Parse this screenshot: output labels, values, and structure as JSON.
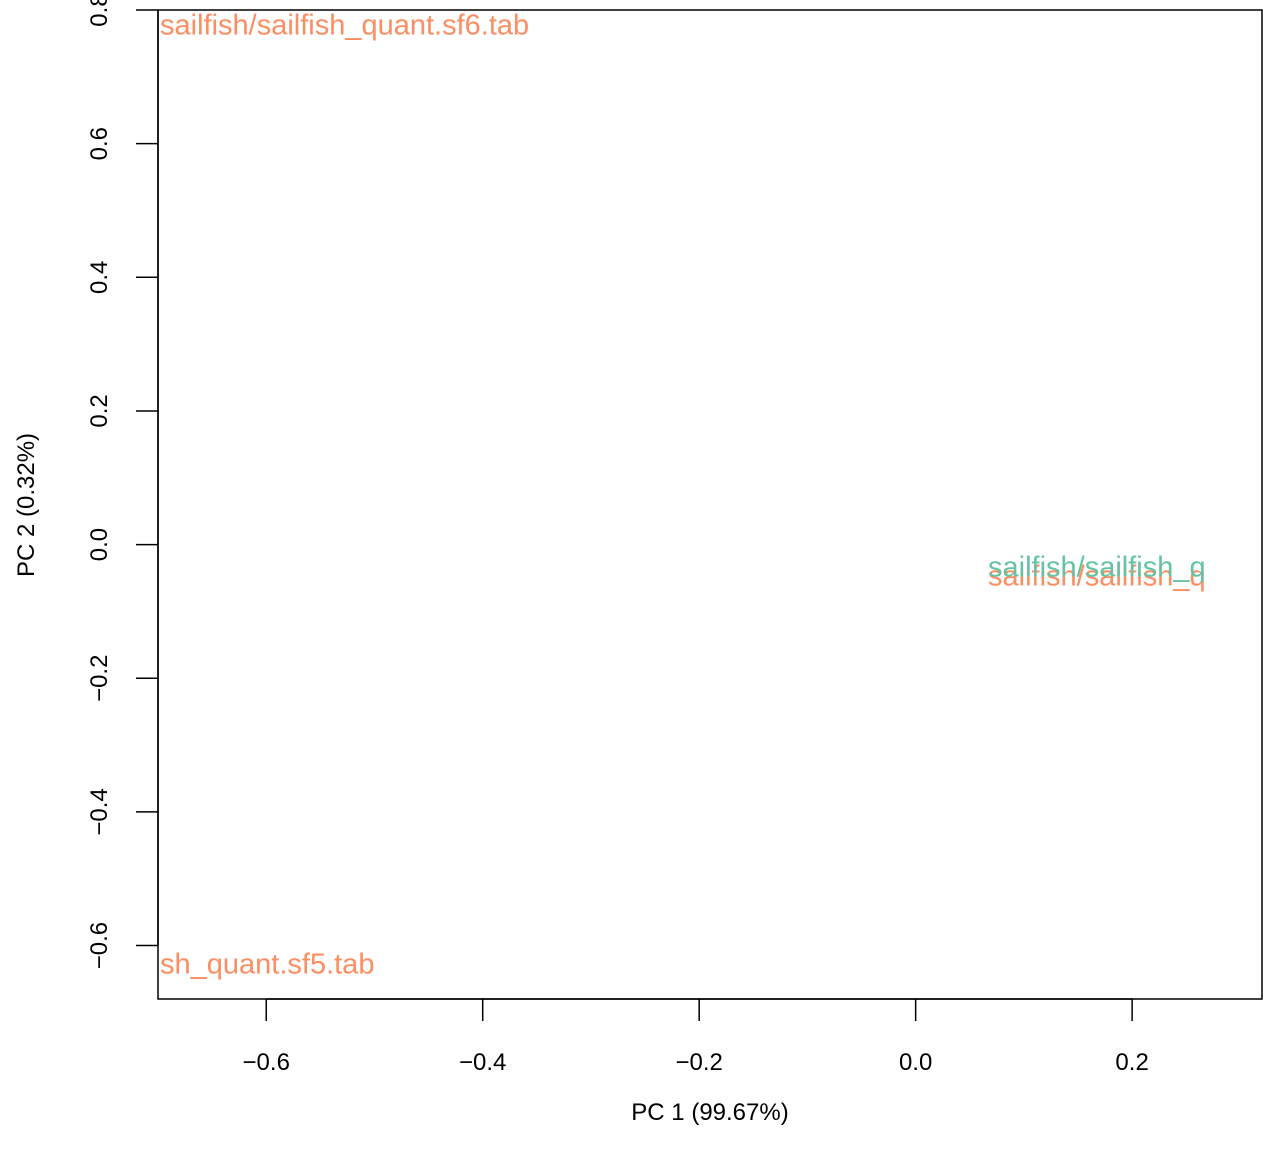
{
  "chart_data": {
    "type": "scatter",
    "title": "",
    "xlabel": "PC 1 (99.67%)",
    "ylabel": "PC 2 (0.32%)",
    "xlim": [
      -0.7,
      0.32
    ],
    "ylim": [
      -0.68,
      0.8
    ],
    "xticks": [
      -0.6,
      -0.4,
      -0.2,
      0.0,
      0.2
    ],
    "xtick_labels": [
      "−0.6",
      "−0.4",
      "−0.2",
      "0.0",
      "0.2"
    ],
    "yticks": [
      -0.6,
      -0.4,
      -0.2,
      0.0,
      0.2,
      0.4,
      0.6,
      0.8
    ],
    "ytick_labels": [
      "−0.6",
      "−0.4",
      "−0.2",
      "0.0",
      "0.2",
      "0.4",
      "0.6",
      "0.8"
    ],
    "grid": false,
    "legend": "none",
    "points": [
      {
        "x": -0.7,
        "y": 0.778,
        "label": "sailfish/sailfish_quant.sf6.tab",
        "color": "#FC8D62"
      },
      {
        "x": -0.7,
        "y": -0.627,
        "label": "sh_quant.sf5.tab",
        "color": "#FC8D62"
      },
      {
        "x": 0.065,
        "y": -0.046,
        "label": "sailfish/sailfish_q",
        "color": "#FC8D62"
      },
      {
        "x": 0.065,
        "y": -0.033,
        "label": "sailfish/sailfish_q",
        "color": "#66C2A5"
      }
    ]
  }
}
